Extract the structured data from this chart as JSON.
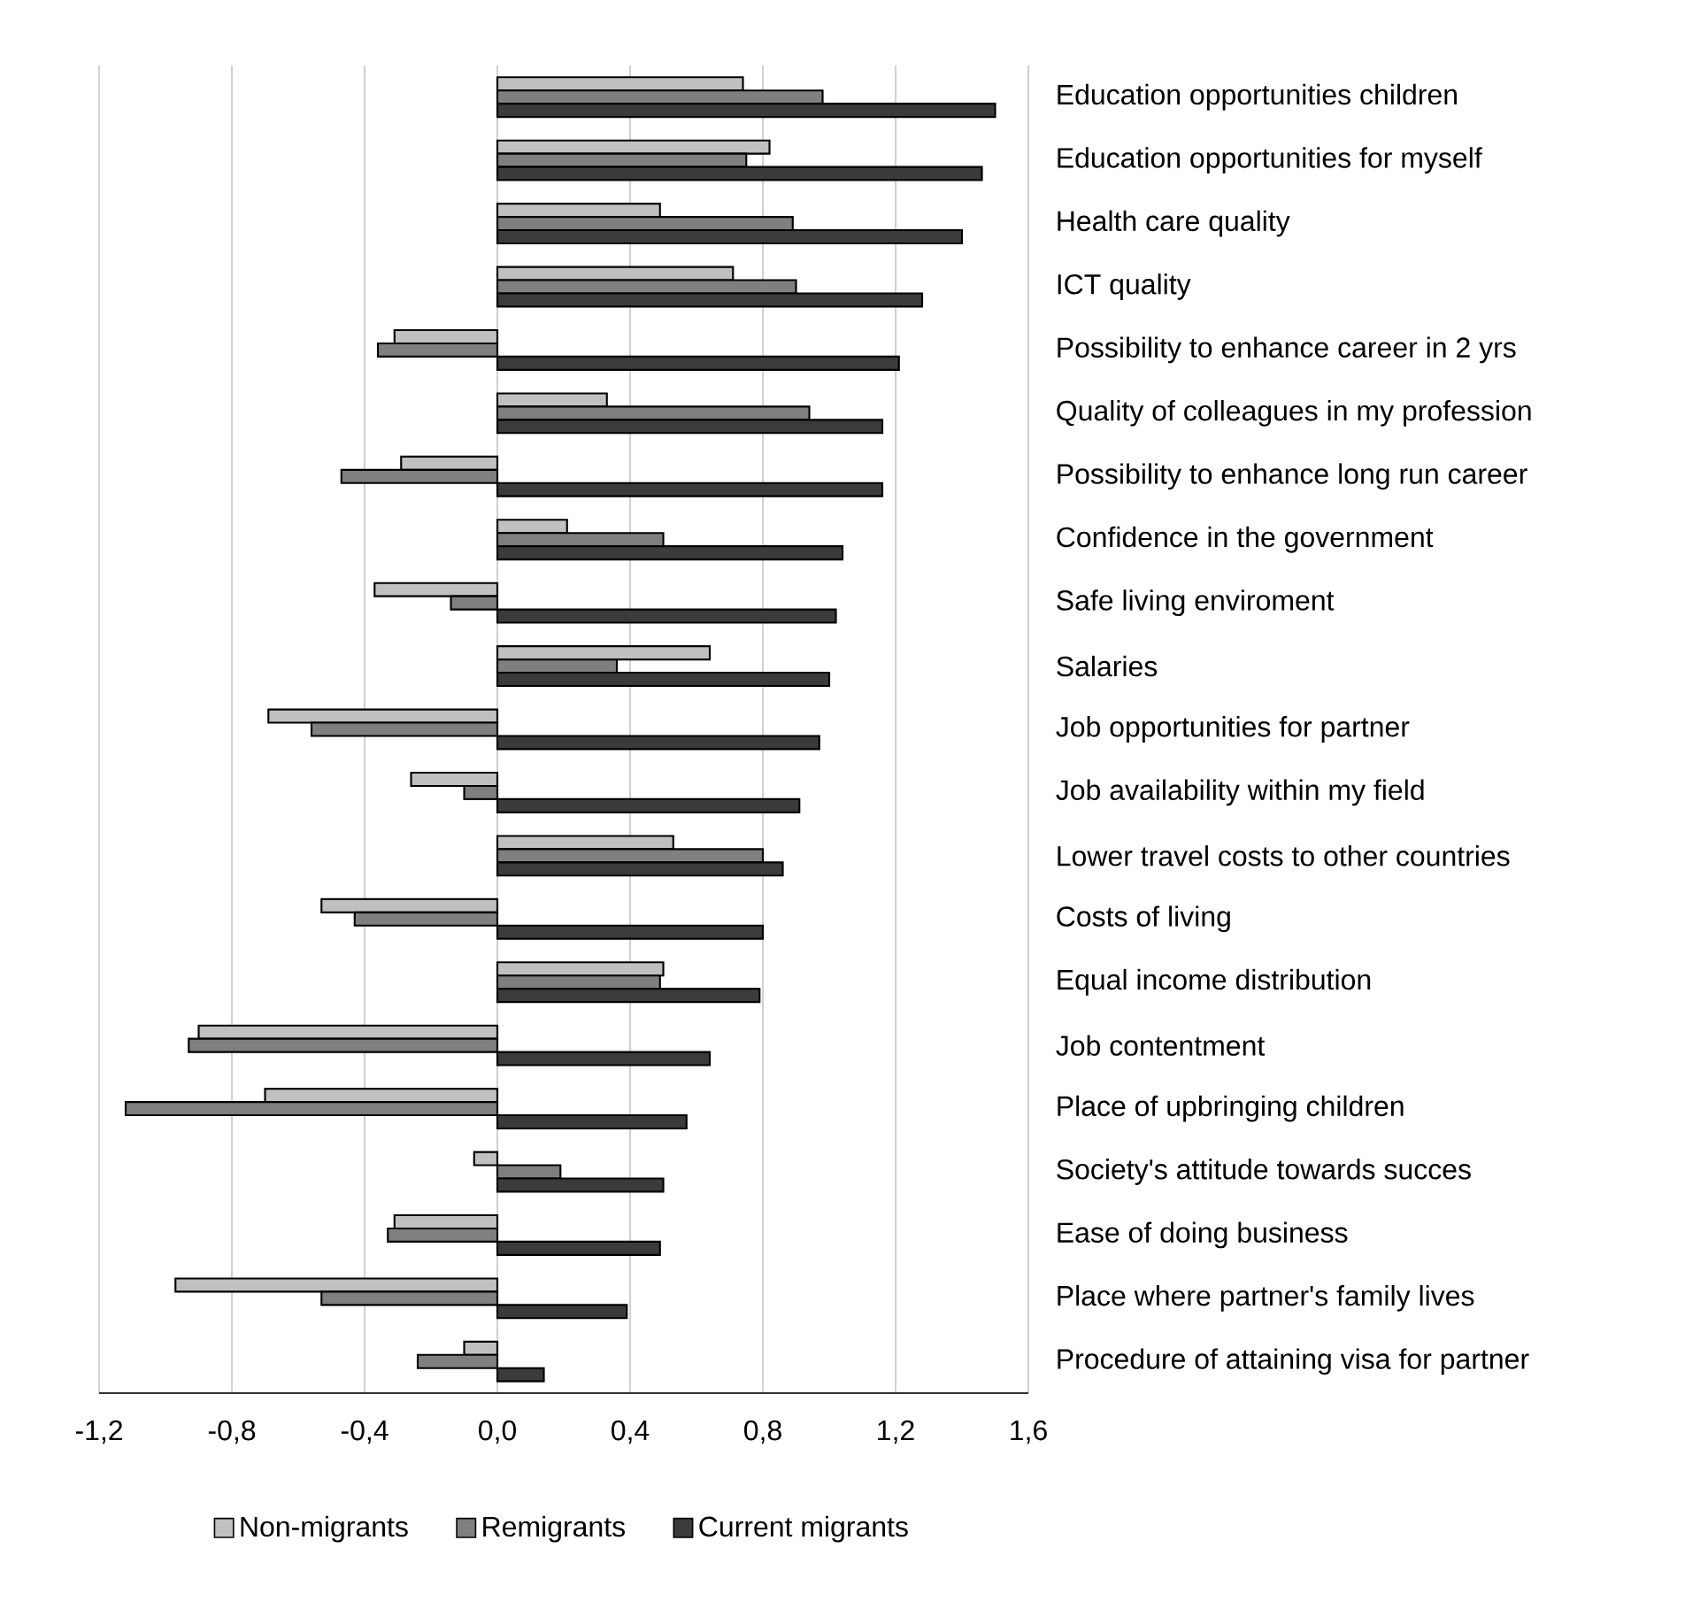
{
  "chart_data": {
    "type": "bar",
    "orientation": "horizontal",
    "categories": [
      "Education opportunities children",
      "Education opportunities for myself",
      "Health care quality",
      "ICT quality",
      "Possibility to enhance career in 2 yrs",
      "Quality of colleagues in my profession",
      "Possibility to enhance long run career",
      "Confidence in the government",
      "Safe living enviroment",
      "Salaries",
      "Job opportunities for partner",
      "Job availability within my field",
      "Lower travel costs to other countries",
      "Costs of living",
      "Equal income distribution",
      "Job contentment",
      "Place of upbringing children",
      "Society's attitude towards succes",
      "Ease of doing business",
      "Place where partner's family lives",
      "Procedure of attaining visa for  partner"
    ],
    "series": [
      {
        "name": "Non-migrants",
        "color": "#c0c0c0",
        "values": [
          0.74,
          0.82,
          0.49,
          0.71,
          -0.31,
          0.33,
          -0.29,
          0.21,
          -0.37,
          0.64,
          -0.69,
          -0.26,
          0.53,
          -0.53,
          0.5,
          -0.9,
          -0.7,
          -0.07,
          -0.31,
          -0.97,
          -0.1
        ]
      },
      {
        "name": "Remigrants",
        "color": "#7f7f7f",
        "values": [
          0.98,
          0.75,
          0.89,
          0.9,
          -0.36,
          0.94,
          -0.47,
          0.5,
          -0.14,
          0.36,
          -0.56,
          -0.1,
          0.8,
          -0.43,
          0.49,
          -0.93,
          -1.12,
          0.19,
          -0.33,
          -0.53,
          -0.24
        ]
      },
      {
        "name": "Current migrants",
        "color": "#3b3b3b",
        "values": [
          1.5,
          1.46,
          1.4,
          1.28,
          1.21,
          1.16,
          1.16,
          1.04,
          1.02,
          1.0,
          0.97,
          0.91,
          0.86,
          0.8,
          0.79,
          0.64,
          0.57,
          0.5,
          0.49,
          0.39,
          0.14
        ]
      }
    ],
    "xlim": [
      -1.2,
      1.6
    ],
    "xticks": [
      {
        "value": -1.2,
        "label": "-1,2"
      },
      {
        "value": -0.8,
        "label": "-0,8"
      },
      {
        "value": -0.4,
        "label": "-0,4"
      },
      {
        "value": 0.0,
        "label": "0,0"
      },
      {
        "value": 0.4,
        "label": "0,4"
      },
      {
        "value": 0.8,
        "label": "0,8"
      },
      {
        "value": 1.2,
        "label": "1,2"
      },
      {
        "value": 1.6,
        "label": "1,6"
      }
    ],
    "grid": "x",
    "legend": "bottom"
  }
}
